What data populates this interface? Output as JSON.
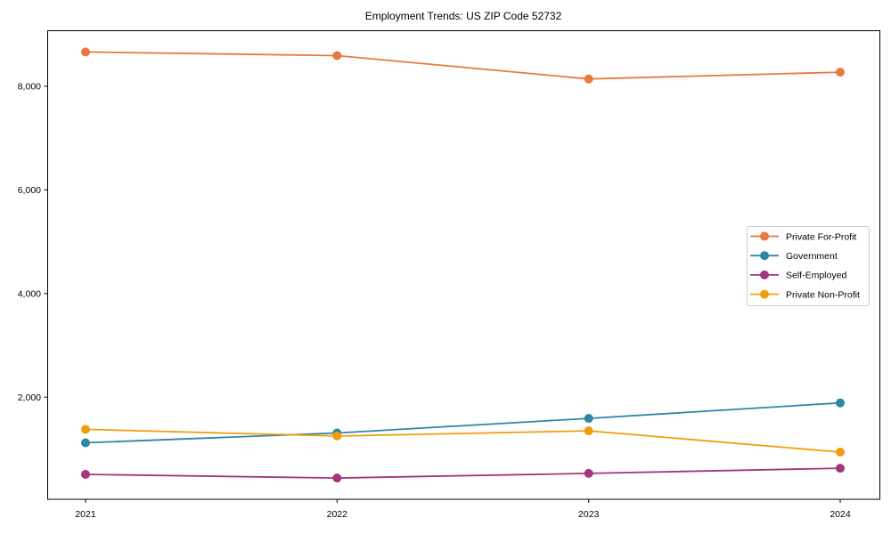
{
  "chart_data": {
    "type": "line",
    "title": "Employment Trends: US ZIP Code 52732",
    "x": [
      2021,
      2022,
      2023,
      2024
    ],
    "x_tick_labels": [
      "2021",
      "2022",
      "2023",
      "2024"
    ],
    "y_ticks": [
      2000,
      4000,
      6000,
      8000
    ],
    "y_tick_labels": [
      "2,000",
      "4,000",
      "6,000",
      "8,000"
    ],
    "ylim": [
      30,
      9070
    ],
    "grid": false,
    "legend_position": "center-right",
    "marker": "circle",
    "series": [
      {
        "name": "Private For-Profit",
        "color": "#e8793f",
        "values": [
          8660,
          8590,
          8140,
          8270
        ]
      },
      {
        "name": "Government",
        "color": "#2e86a5",
        "values": [
          1120,
          1310,
          1590,
          1890
        ]
      },
      {
        "name": "Self-Employed",
        "color": "#a3357c",
        "values": [
          510,
          440,
          530,
          630
        ]
      },
      {
        "name": "Private Non-Profit",
        "color": "#f09d0c",
        "values": [
          1380,
          1250,
          1350,
          940
        ]
      }
    ]
  }
}
